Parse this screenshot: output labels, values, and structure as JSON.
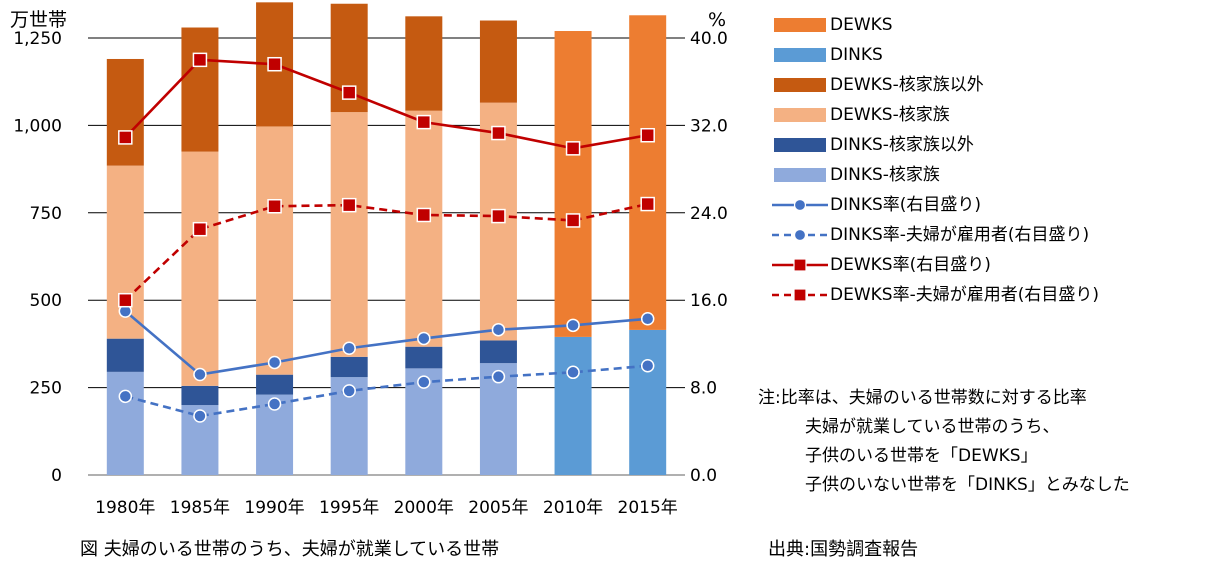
{
  "chart_data": {
    "type": "bar",
    "y_unit_left": "万世帯",
    "y_unit_right": "%",
    "ylim_left": [
      0,
      1250
    ],
    "ylim_right": [
      0,
      40
    ],
    "yticks_left": [
      "0",
      "250",
      "500",
      "750",
      "1,000",
      "1,250"
    ],
    "yticks_right": [
      "0.0",
      "8.0",
      "16.0",
      "24.0",
      "32.0",
      "40.0"
    ],
    "categories": [
      "1980年",
      "1985年",
      "1990年",
      "1995年",
      "2000年",
      "2005年",
      "2010年",
      "2015年"
    ],
    "bar_series": [
      {
        "name": "DINKS-核家族",
        "color": "#8faadc",
        "values": [
          295,
          200,
          230,
          280,
          305,
          320,
          null,
          null
        ]
      },
      {
        "name": "DINKS-核家族以外",
        "color": "#2f5597",
        "values": [
          95,
          55,
          57,
          58,
          62,
          65,
          null,
          null
        ]
      },
      {
        "name": "DINKS",
        "color": "#5b9bd5",
        "values": [
          null,
          null,
          null,
          null,
          null,
          null,
          395,
          415
        ]
      },
      {
        "name": "DEWKS-核家族",
        "color": "#f4b183",
        "values": [
          495,
          670,
          710,
          700,
          675,
          680,
          null,
          null
        ]
      },
      {
        "name": "DEWKS-核家族以外",
        "color": "#c55a11",
        "values": [
          305,
          355,
          355,
          310,
          270,
          235,
          null,
          null
        ]
      },
      {
        "name": "DEWKS",
        "color": "#ed7d31",
        "values": [
          null,
          null,
          null,
          null,
          null,
          null,
          875,
          900
        ]
      }
    ],
    "line_series": [
      {
        "name": "DINKS率(右目盛り)",
        "color": "#4472c4",
        "marker": "circle",
        "dashed": false,
        "values": [
          15.0,
          9.2,
          10.3,
          11.6,
          12.5,
          13.3,
          13.7,
          14.3
        ]
      },
      {
        "name": "DINKS率-夫婦が雇用者(右目盛り)",
        "color": "#4472c4",
        "marker": "circle",
        "dashed": true,
        "values": [
          7.2,
          5.4,
          6.5,
          7.7,
          8.5,
          9.0,
          9.4,
          10.0
        ]
      },
      {
        "name": "DEWKS率(右目盛り)",
        "color": "#c00000",
        "marker": "square",
        "dashed": false,
        "values": [
          30.9,
          38.0,
          37.6,
          35.0,
          32.3,
          31.3,
          29.9,
          31.1
        ]
      },
      {
        "name": "DEWKS率-夫婦が雇用者(右目盛り)",
        "color": "#c00000",
        "marker": "square",
        "dashed": true,
        "values": [
          16.0,
          22.5,
          24.6,
          24.7,
          23.8,
          23.7,
          23.3,
          24.8
        ]
      }
    ]
  },
  "legend": [
    {
      "label": "DEWKS",
      "kind": "box",
      "color": "#ed7d31"
    },
    {
      "label": "DINKS",
      "kind": "box",
      "color": "#5b9bd5"
    },
    {
      "label": "DEWKS-核家族以外",
      "kind": "box",
      "color": "#c55a11"
    },
    {
      "label": "DEWKS-核家族",
      "kind": "box",
      "color": "#f4b183"
    },
    {
      "label": "DINKS-核家族以外",
      "kind": "box",
      "color": "#2f5597"
    },
    {
      "label": "DINKS-核家族",
      "kind": "box",
      "color": "#8faadc"
    },
    {
      "label": "DINKS率(右目盛り)",
      "kind": "line",
      "color": "#4472c4",
      "marker": "circle",
      "dashed": false
    },
    {
      "label": "DINKS率-夫婦が雇用者(右目盛り)",
      "kind": "line",
      "color": "#4472c4",
      "marker": "circle",
      "dashed": true
    },
    {
      "label": "DEWKS率(右目盛り)",
      "kind": "line",
      "color": "#c00000",
      "marker": "square",
      "dashed": false
    },
    {
      "label": "DEWKS率-夫婦が雇用者(右目盛り)",
      "kind": "line",
      "color": "#c00000",
      "marker": "square",
      "dashed": true
    }
  ],
  "note": {
    "prefix": "注:",
    "lines": [
      "比率は、夫婦のいる世帯数に対する比率",
      "夫婦が就業している世帯のうち、",
      "子供のいる世帯を「DEWKS」",
      "子供のいない世帯を「DINKS」とみなした"
    ]
  },
  "caption": "図 夫婦のいる世帯のうち、夫婦が就業している世帯",
  "source": "出典:国勢調査報告"
}
